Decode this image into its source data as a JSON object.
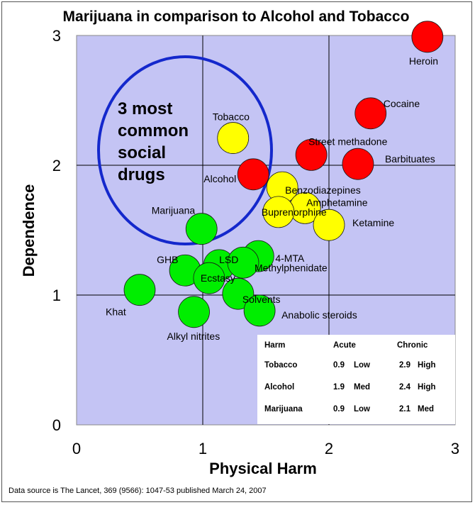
{
  "chart_data": {
    "type": "scatter",
    "title": "Marijuana in comparison to Alcohol and Tobacco",
    "xlabel": "Physical Harm",
    "ylabel": "Dependence",
    "xlim": [
      0,
      3
    ],
    "ylim": [
      0,
      3
    ],
    "xticks": [
      "0",
      "1",
      "2",
      "3"
    ],
    "yticks": [
      "0",
      "1",
      "2",
      "3"
    ],
    "grid": true,
    "background_color": "#c4c4f4",
    "colors": {
      "red": "#ff0000",
      "yellow": "#ffff00",
      "green": "#00ee00",
      "ellipse": "#1428cc"
    },
    "points": [
      {
        "name": "Heroin",
        "x": 2.78,
        "y": 2.99,
        "color": "red"
      },
      {
        "name": "Cocaine",
        "x": 2.33,
        "y": 2.4,
        "color": "red"
      },
      {
        "name": "Street methadone",
        "x": 1.86,
        "y": 2.08,
        "color": "red"
      },
      {
        "name": "Barbituates",
        "x": 2.23,
        "y": 2.01,
        "color": "red"
      },
      {
        "name": "Alcohol",
        "x": 1.4,
        "y": 1.93,
        "color": "red"
      },
      {
        "name": "Tobacco",
        "x": 1.24,
        "y": 2.21,
        "color": "yellow"
      },
      {
        "name": "Benzodiazepines",
        "x": 1.63,
        "y": 1.83,
        "color": "yellow"
      },
      {
        "name": "Amphetamine",
        "x": 1.81,
        "y": 1.67,
        "color": "yellow"
      },
      {
        "name": "Buprenorphine",
        "x": 1.6,
        "y": 1.64,
        "color": "yellow"
      },
      {
        "name": "Ketamine",
        "x": 2.0,
        "y": 1.54,
        "color": "yellow"
      },
      {
        "name": "Marijuana",
        "x": 0.99,
        "y": 1.51,
        "color": "green"
      },
      {
        "name": "4-MTA",
        "x": 1.44,
        "y": 1.3,
        "color": "green"
      },
      {
        "name": "LSD",
        "x": 1.13,
        "y": 1.23,
        "color": "green"
      },
      {
        "name": "Methylphenidate",
        "x": 1.32,
        "y": 1.25,
        "color": "green"
      },
      {
        "name": "GHB",
        "x": 0.86,
        "y": 1.19,
        "color": "green"
      },
      {
        "name": "Ecstasy",
        "x": 1.05,
        "y": 1.13,
        "color": "green"
      },
      {
        "name": "Solvents",
        "x": 1.28,
        "y": 1.01,
        "color": "green"
      },
      {
        "name": "Khat",
        "x": 0.5,
        "y": 1.04,
        "color": "green"
      },
      {
        "name": "Alkyl nitrites",
        "x": 0.93,
        "y": 0.87,
        "color": "green"
      },
      {
        "name": "Anabolic steroids",
        "x": 1.45,
        "y": 0.88,
        "color": "green"
      }
    ],
    "annotation": [
      "3 most",
      "common",
      "social",
      "drugs"
    ],
    "table": {
      "headers": [
        "Harm",
        "Acute",
        "Chronic"
      ],
      "rows": [
        {
          "drug": "Tobacco",
          "acute_value": "0.9",
          "acute_level": "Low",
          "chronic_value": "2.9",
          "chronic_level": "High"
        },
        {
          "drug": "Alcohol",
          "acute_value": "1.9",
          "acute_level": "Med",
          "chronic_value": "2.4",
          "chronic_level": "High"
        },
        {
          "drug": "Marijuana",
          "acute_value": "0.9",
          "acute_level": "Low",
          "chronic_value": "2.1",
          "chronic_level": "Med"
        }
      ]
    },
    "source": "Data source is The Lancet, 369 (9566): 1047-53 published March 24, 2007"
  }
}
